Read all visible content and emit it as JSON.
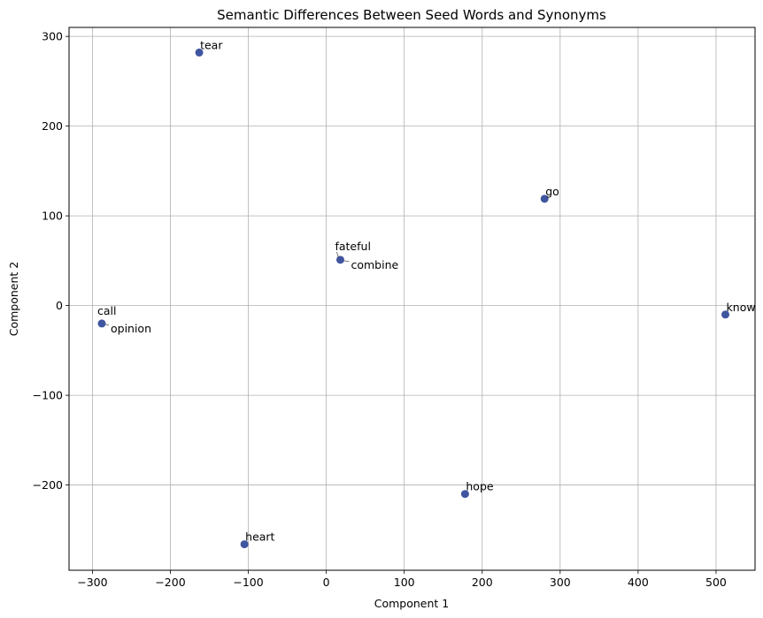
{
  "chart_data": {
    "type": "scatter",
    "title": "Semantic Differences Between Seed Words and Synonyms",
    "xlabel": "Component 1",
    "ylabel": "Component 2",
    "xlim": [
      -330,
      550
    ],
    "ylim": [
      -295,
      310
    ],
    "xticks": [
      -300,
      -200,
      -100,
      0,
      100,
      200,
      300,
      400,
      500
    ],
    "yticks": [
      -200,
      -100,
      0,
      100,
      200,
      300
    ],
    "grid": true,
    "marker_color": "#3f55a0",
    "points": [
      {
        "label": "tear",
        "x": -163,
        "y": 282
      },
      {
        "label": "go",
        "x": 280,
        "y": 119
      },
      {
        "label": "fateful",
        "x": 18,
        "y": 51
      },
      {
        "label": "combine",
        "x": 18,
        "y": 51
      },
      {
        "label": "know",
        "x": 512,
        "y": -10
      },
      {
        "label": "call",
        "x": -288,
        "y": -20
      },
      {
        "label": "opinion",
        "x": -288,
        "y": -20
      },
      {
        "label": "hope",
        "x": 178,
        "y": -210
      },
      {
        "label": "heart",
        "x": -105,
        "y": -266
      }
    ]
  }
}
